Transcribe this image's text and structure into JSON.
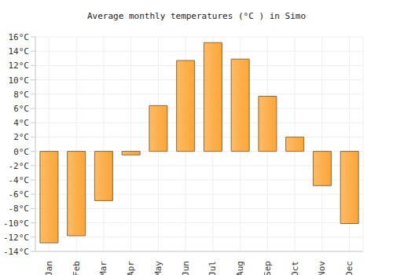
{
  "chart_data": {
    "type": "bar",
    "title": "Average monthly temperatures (°C ) in Simo",
    "categories": [
      "Jan",
      "Feb",
      "Mar",
      "Apr",
      "May",
      "Jun",
      "Jul",
      "Aug",
      "Sep",
      "Oct",
      "Nov",
      "Dec"
    ],
    "values": [
      -12.8,
      -11.8,
      -6.9,
      -0.5,
      6.4,
      12.7,
      15.2,
      12.9,
      7.7,
      2,
      -4.8,
      -10.1
    ],
    "color": "#fca535",
    "ylim": [
      -14,
      16
    ],
    "yticks": [
      {
        "value": -14,
        "label": "-14°C"
      },
      {
        "value": -12,
        "label": "-12°C"
      },
      {
        "value": -10,
        "label": "-10°C"
      },
      {
        "value": -8,
        "label": "-8°C"
      },
      {
        "value": -6,
        "label": "-6°C"
      },
      {
        "value": -4,
        "label": "-4°C"
      },
      {
        "value": -2,
        "label": "-2°C"
      },
      {
        "value": 0,
        "label": "0°C"
      },
      {
        "value": 2,
        "label": "2°C"
      },
      {
        "value": 4,
        "label": "4°C"
      },
      {
        "value": 6,
        "label": "6°C"
      },
      {
        "value": 8,
        "label": "8°C"
      },
      {
        "value": 10,
        "label": "10°C"
      },
      {
        "value": 12,
        "label": "12°C"
      },
      {
        "value": 14,
        "label": "14°C"
      },
      {
        "value": 16,
        "label": "16°C"
      }
    ],
    "grid": true
  }
}
